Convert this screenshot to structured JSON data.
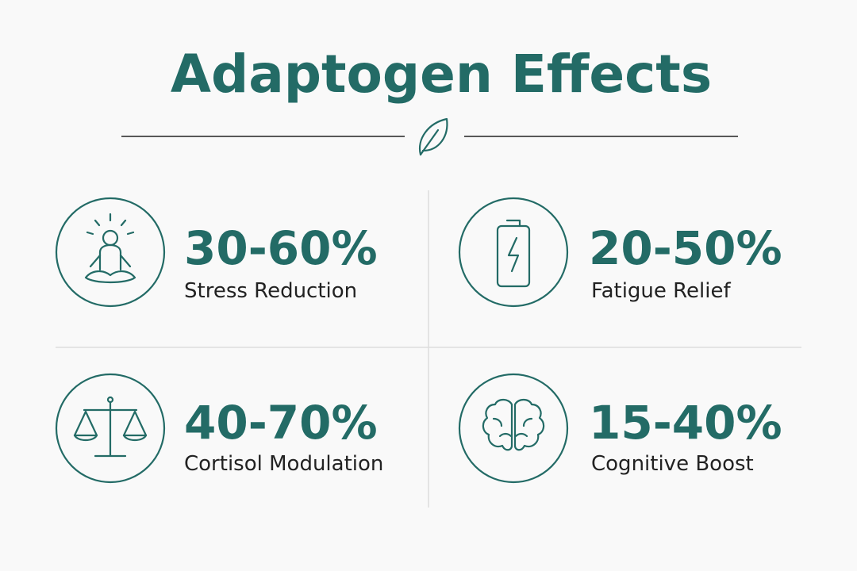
{
  "title": "Adaptogen Effects",
  "stats": [
    {
      "value": "30-60%",
      "label": "Stress Reduction"
    },
    {
      "value": "20-50%",
      "label": "Fatigue Relief"
    },
    {
      "value": "40-70%",
      "label": "Cortisol Modulation"
    },
    {
      "value": "15-40%",
      "label": "Cognitive Boost"
    }
  ]
}
